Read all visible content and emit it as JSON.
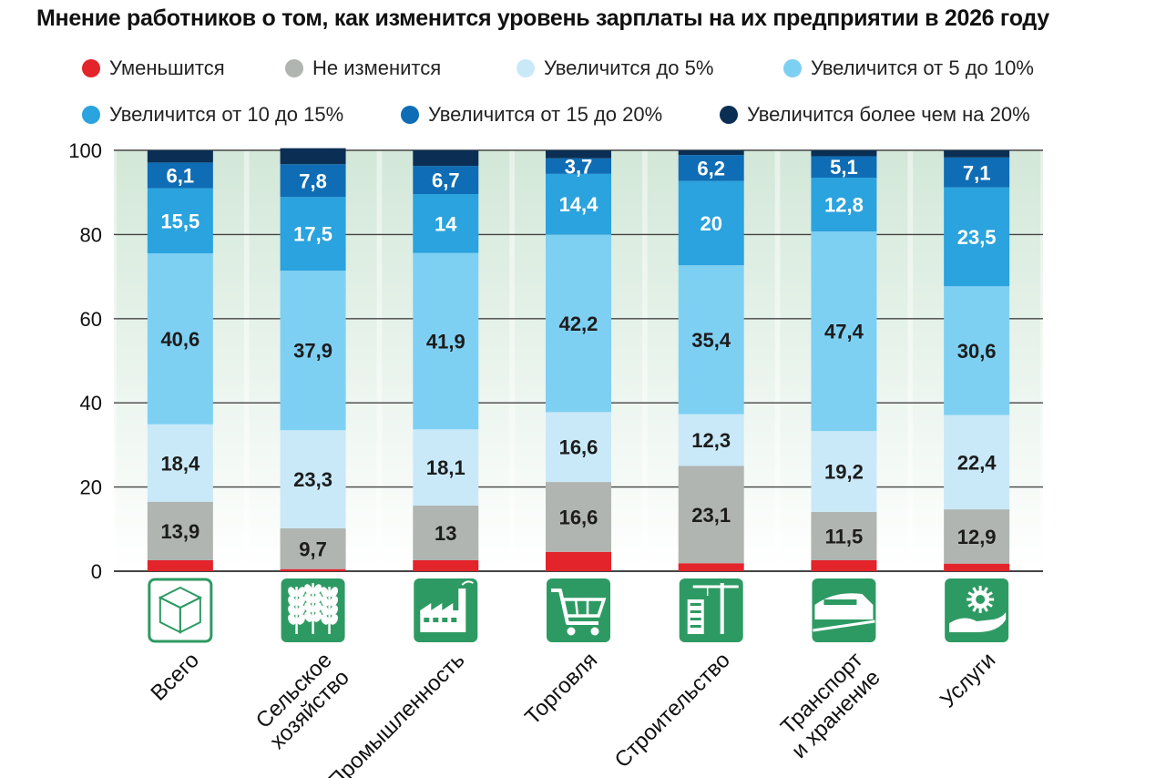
{
  "chart_data": {
    "type": "bar",
    "stacked": true,
    "title": "Мнение работников о том, как изменится уровень зарплаты на их предприятии в 2026 году",
    "categories": [
      "Всего",
      "Сельское хозяйство",
      "Промышленность",
      "Торговля",
      "Строительство",
      "Транспорт и хранение",
      "Услуги"
    ],
    "category_lines": [
      [
        "Всего"
      ],
      [
        "Сельское",
        "хозяйство"
      ],
      [
        "Промышленность"
      ],
      [
        "Торговля"
      ],
      [
        "Строительство"
      ],
      [
        "Транспорт",
        "и хранение"
      ],
      [
        "Услуги"
      ]
    ],
    "category_icons": [
      "cube-icon",
      "wheat-icon",
      "factory-icon",
      "shopping-cart-icon",
      "construction-crane-icon",
      "train-icon",
      "services-hand-icon"
    ],
    "ylim": [
      0,
      100
    ],
    "yticks": [
      "0",
      "20",
      "40",
      "60",
      "80",
      "100"
    ],
    "series": [
      {
        "name": "Уменьшится",
        "color": "#e3242b",
        "values": [
          2.6,
          0.5,
          2.6,
          4.6,
          1.9,
          2.6,
          1.8
        ],
        "labels": [
          "",
          "",
          "",
          "",
          "",
          "",
          ""
        ]
      },
      {
        "name": "Не изменится",
        "color": "#b0b5b1",
        "values": [
          13.9,
          9.7,
          13.0,
          16.6,
          23.1,
          11.5,
          12.9
        ],
        "labels": [
          "13,9",
          "9,7",
          "13",
          "16,6",
          "23,1",
          "11,5",
          "12,9"
        ]
      },
      {
        "name": "Увеличится до 5%",
        "color": "#c9e9f8",
        "values": [
          18.4,
          23.3,
          18.1,
          16.6,
          12.3,
          19.2,
          22.4
        ],
        "labels": [
          "18,4",
          "23,3",
          "18,1",
          "16,6",
          "12,3",
          "19,2",
          "22,4"
        ]
      },
      {
        "name": "Увеличится от 5 до 10%",
        "color": "#7ed0f3",
        "values": [
          40.6,
          37.9,
          41.9,
          42.2,
          35.4,
          47.4,
          30.6
        ],
        "labels": [
          "40,6",
          "37,9",
          "41,9",
          "42,2",
          "35,4",
          "47,4",
          "30,6"
        ]
      },
      {
        "name": "Увеличится от 10 до 15%",
        "color": "#2aa3de",
        "values": [
          15.5,
          17.5,
          14.0,
          14.4,
          20.0,
          12.8,
          23.5
        ],
        "labels": [
          "15,5",
          "17,5",
          "14",
          "14,4",
          "20",
          "12,8",
          "23,5"
        ]
      },
      {
        "name": "Увеличится от 15 до 20%",
        "color": "#0f6db5",
        "values": [
          6.1,
          7.8,
          6.7,
          3.7,
          6.2,
          5.1,
          7.1
        ],
        "labels": [
          "6,1",
          "7,8",
          "6,7",
          "3,7",
          "6,2",
          "5,1",
          "7,1"
        ]
      },
      {
        "name": "Увеличится более чем на 20%",
        "color": "#0b2f54",
        "values": [
          2.9,
          3.8,
          3.7,
          1.9,
          1.1,
          1.4,
          1.7
        ],
        "labels": [
          "",
          "",
          "",
          "",
          "",
          "",
          ""
        ]
      }
    ],
    "colors": {
      "icon_bg": "#2e9a63",
      "grid": "#444444"
    }
  }
}
